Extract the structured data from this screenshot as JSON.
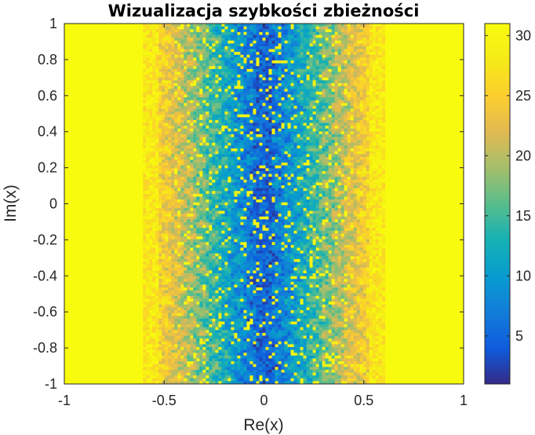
{
  "chart_data": {
    "type": "heatmap",
    "title": "Wizualizacja szybkości zbieżności",
    "xlabel": "Re(x)",
    "ylabel": "Im(x)",
    "xlim": [
      -1,
      1
    ],
    "ylim": [
      -1,
      1
    ],
    "x_ticks": [
      -1,
      -0.5,
      0,
      0.5,
      1
    ],
    "x_tick_labels": [
      "-1",
      "-0.5",
      "0",
      "0.5",
      "1"
    ],
    "y_ticks": [
      1,
      0.8,
      0.6,
      0.4,
      0.2,
      0,
      -0.2,
      -0.4,
      -0.6,
      -0.8,
      -1
    ],
    "y_tick_labels": [
      "1",
      "0.8",
      "0.6",
      "0.4",
      "0.2",
      "0",
      "-0.2",
      "-0.4",
      "-0.6",
      "-0.8",
      "-1"
    ],
    "colormap": "parula",
    "color_range": [
      1,
      31
    ],
    "colorbar": {
      "position": "right",
      "ticks": [
        30,
        25,
        20,
        15,
        10,
        5
      ],
      "tick_labels": [
        "30",
        "25",
        "20",
        "15",
        "10",
        "5"
      ]
    },
    "grid": false,
    "background_color": "#f9fb0e"
  }
}
